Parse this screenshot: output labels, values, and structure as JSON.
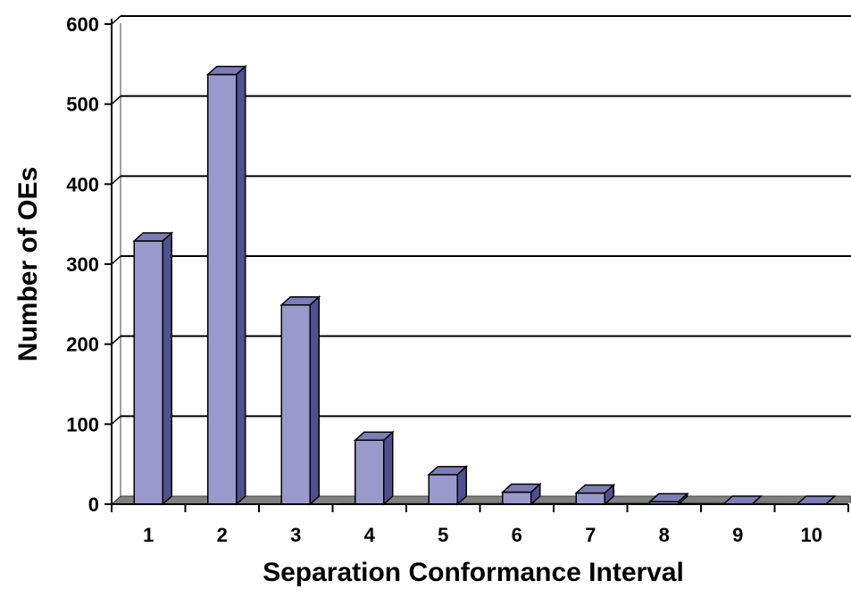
{
  "chart_data": {
    "type": "bar",
    "title": "",
    "xlabel": "Separation Conformance Interval",
    "ylabel": "Number of OEs",
    "categories": [
      "1",
      "2",
      "3",
      "4",
      "5",
      "6",
      "7",
      "8",
      "9",
      "10"
    ],
    "values": [
      329,
      537,
      249,
      80,
      37,
      15,
      14,
      3,
      0,
      0
    ],
    "ylim": [
      0,
      600
    ],
    "yticks": [
      "0",
      "100",
      "200",
      "300",
      "400",
      "500",
      "600"
    ],
    "grid": true,
    "legend": "none",
    "three_d": true,
    "colors": {
      "bar_front": "#9999CC",
      "bar_side": "#505090",
      "bar_top": "#7C7CB8",
      "floor": "#808080",
      "floor_side": "#404040",
      "gridline": "#000000",
      "wall": "#808080"
    }
  }
}
